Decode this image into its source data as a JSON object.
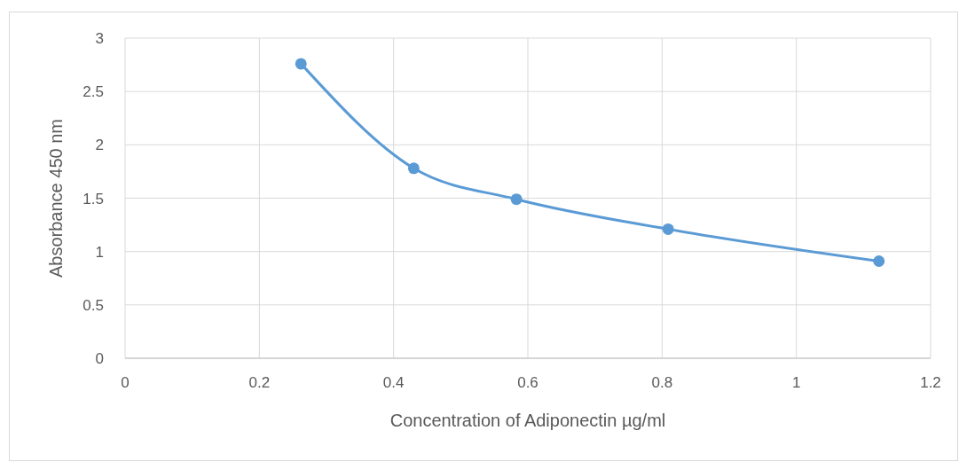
{
  "chart_data": {
    "type": "line",
    "xlabel": "Concentration of Adiponectin µg/ml",
    "ylabel": "Absorbance 450 nm",
    "x": [
      0.262,
      0.43,
      0.583,
      0.809,
      1.123
    ],
    "series": [
      {
        "color": "#5b9bd5",
        "values": [
          2.76,
          1.78,
          1.49,
          1.21,
          0.91
        ]
      }
    ],
    "xlim": [
      0,
      1.2
    ],
    "xticks": [
      0,
      0.2,
      0.4,
      0.6,
      0.8,
      1,
      1.2
    ],
    "ylim": [
      0,
      3
    ],
    "yticks": [
      0,
      0.5,
      1,
      1.5,
      2,
      2.5,
      3
    ],
    "grid": true,
    "marker": "circle",
    "line_style": "solid"
  }
}
